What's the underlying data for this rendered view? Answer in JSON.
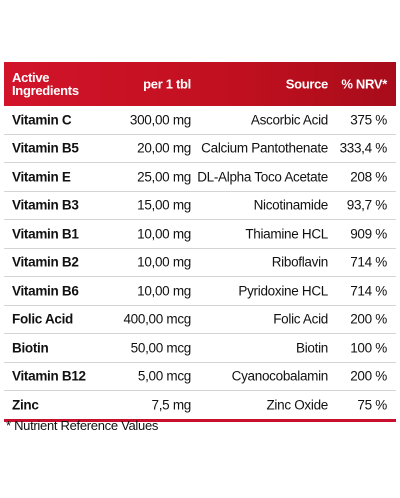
{
  "table": {
    "header": [
      "Active Ingredients",
      "per 1 tbl",
      "Source",
      "% NRV*"
    ],
    "rows": [
      [
        "Vitamin C",
        "300,00 mg",
        "Ascorbic Acid",
        "375 %"
      ],
      [
        "Vitamin B5",
        "20,00 mg",
        "Calcium Pantothenate",
        "333,4 %"
      ],
      [
        "Vitamin E",
        "25,00 mg",
        "DL-Alpha Toco Acetate",
        "208 %"
      ],
      [
        "Vitamin B3",
        "15,00 mg",
        "Nicotinamide",
        "93,7 %"
      ],
      [
        "Vitamin B1",
        "10,00 mg",
        "Thiamine HCL",
        "909 %"
      ],
      [
        "Vitamin B2",
        "10,00 mg",
        "Riboflavin",
        "714 %"
      ],
      [
        "Vitamin B6",
        "10,00 mg",
        "Pyridoxine HCL",
        "714 %"
      ],
      [
        "Folic Acid",
        "400,00 mcg",
        "Folic Acid",
        "200 %"
      ],
      [
        "Biotin",
        "50,00 mcg",
        "Biotin",
        "100 %"
      ],
      [
        "Vitamin B12",
        "5,00 mcg",
        "Cyanocobalamin",
        "200 %"
      ],
      [
        "Zinc",
        "7,5 mg",
        "Zinc Oxide",
        "75 %"
      ]
    ],
    "footnote": "* Nutrient Reference Values"
  }
}
